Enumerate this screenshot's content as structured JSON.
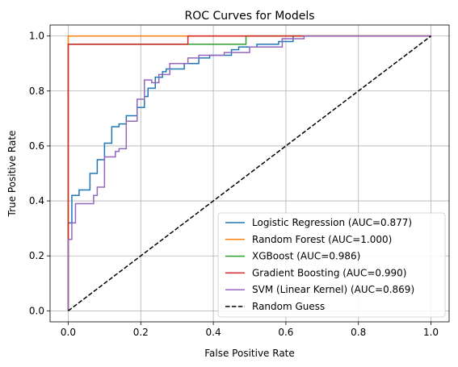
{
  "chart_data": {
    "type": "line",
    "title": "ROC Curves for Models",
    "xlabel": "False Positive Rate",
    "ylabel": "True Positive Rate",
    "xlim": [
      -0.05,
      1.05
    ],
    "ylim": [
      -0.04,
      1.04
    ],
    "xticks": [
      0.0,
      0.2,
      0.4,
      0.6,
      0.8,
      1.0
    ],
    "yticks": [
      0.0,
      0.2,
      0.4,
      0.6,
      0.8,
      1.0
    ],
    "xtick_labels": [
      "0.0",
      "0.2",
      "0.4",
      "0.6",
      "0.8",
      "1.0"
    ],
    "ytick_labels": [
      "0.0",
      "0.2",
      "0.4",
      "0.6",
      "0.8",
      "1.0"
    ],
    "grid": true,
    "legend_position": "lower-right",
    "series": [
      {
        "name": "Logistic Regression (AUC=0.877)",
        "color": "#1f77b4",
        "dash": "solid",
        "x": [
          0,
          0,
          0.01,
          0.01,
          0.03,
          0.03,
          0.06,
          0.06,
          0.08,
          0.08,
          0.1,
          0.1,
          0.12,
          0.12,
          0.14,
          0.14,
          0.16,
          0.16,
          0.19,
          0.19,
          0.21,
          0.21,
          0.22,
          0.22,
          0.24,
          0.24,
          0.26,
          0.26,
          0.27,
          0.27,
          0.32,
          0.32,
          0.36,
          0.36,
          0.39,
          0.39,
          0.45,
          0.45,
          0.47,
          0.47,
          0.52,
          0.52,
          0.58,
          0.58,
          0.62,
          0.62,
          1.0
        ],
        "y": [
          0,
          0.32,
          0.32,
          0.42,
          0.42,
          0.44,
          0.44,
          0.5,
          0.5,
          0.55,
          0.55,
          0.61,
          0.61,
          0.67,
          0.67,
          0.68,
          0.68,
          0.71,
          0.71,
          0.74,
          0.74,
          0.78,
          0.78,
          0.81,
          0.81,
          0.85,
          0.85,
          0.87,
          0.87,
          0.88,
          0.88,
          0.9,
          0.9,
          0.92,
          0.92,
          0.93,
          0.93,
          0.95,
          0.95,
          0.96,
          0.96,
          0.97,
          0.97,
          0.98,
          0.98,
          1.0,
          1.0
        ]
      },
      {
        "name": "Random Forest (AUC=1.000)",
        "color": "#ff7f0e",
        "dash": "solid",
        "x": [
          0,
          0,
          1.0
        ],
        "y": [
          0,
          1.0,
          1.0
        ]
      },
      {
        "name": "XGBoost (AUC=0.986)",
        "color": "#2ca02c",
        "dash": "solid",
        "x": [
          0,
          0,
          0.33,
          0.33,
          0.49,
          0.49,
          1.0
        ],
        "y": [
          0,
          0.97,
          0.97,
          0.97,
          0.97,
          1.0,
          1.0
        ]
      },
      {
        "name": "Gradient Boosting (AUC=0.990)",
        "color": "#d62728",
        "dash": "solid",
        "x": [
          0,
          0,
          0.33,
          0.33,
          0.65,
          0.65,
          1.0
        ],
        "y": [
          0,
          0.97,
          0.97,
          1.0,
          1.0,
          1.0,
          1.0
        ]
      },
      {
        "name": "SVM (Linear Kernel) (AUC=0.869)",
        "color": "#9467bd",
        "dash": "solid",
        "x": [
          0,
          0,
          0.01,
          0.01,
          0.02,
          0.02,
          0.07,
          0.07,
          0.08,
          0.08,
          0.1,
          0.1,
          0.13,
          0.13,
          0.14,
          0.14,
          0.16,
          0.16,
          0.19,
          0.19,
          0.21,
          0.21,
          0.23,
          0.23,
          0.25,
          0.25,
          0.28,
          0.28,
          0.33,
          0.33,
          0.36,
          0.36,
          0.43,
          0.43,
          0.5,
          0.5,
          0.59,
          0.59,
          0.65,
          0.65,
          1.0
        ],
        "y": [
          0,
          0.26,
          0.26,
          0.32,
          0.32,
          0.39,
          0.39,
          0.42,
          0.42,
          0.45,
          0.45,
          0.56,
          0.56,
          0.58,
          0.58,
          0.59,
          0.59,
          0.69,
          0.69,
          0.77,
          0.77,
          0.84,
          0.84,
          0.83,
          0.83,
          0.86,
          0.86,
          0.9,
          0.9,
          0.92,
          0.92,
          0.93,
          0.93,
          0.94,
          0.94,
          0.96,
          0.96,
          0.99,
          0.99,
          1.0,
          1.0
        ]
      },
      {
        "name": "Random Guess",
        "color": "#000000",
        "dash": "dashed",
        "x": [
          0,
          1
        ],
        "y": [
          0,
          1
        ]
      }
    ]
  }
}
